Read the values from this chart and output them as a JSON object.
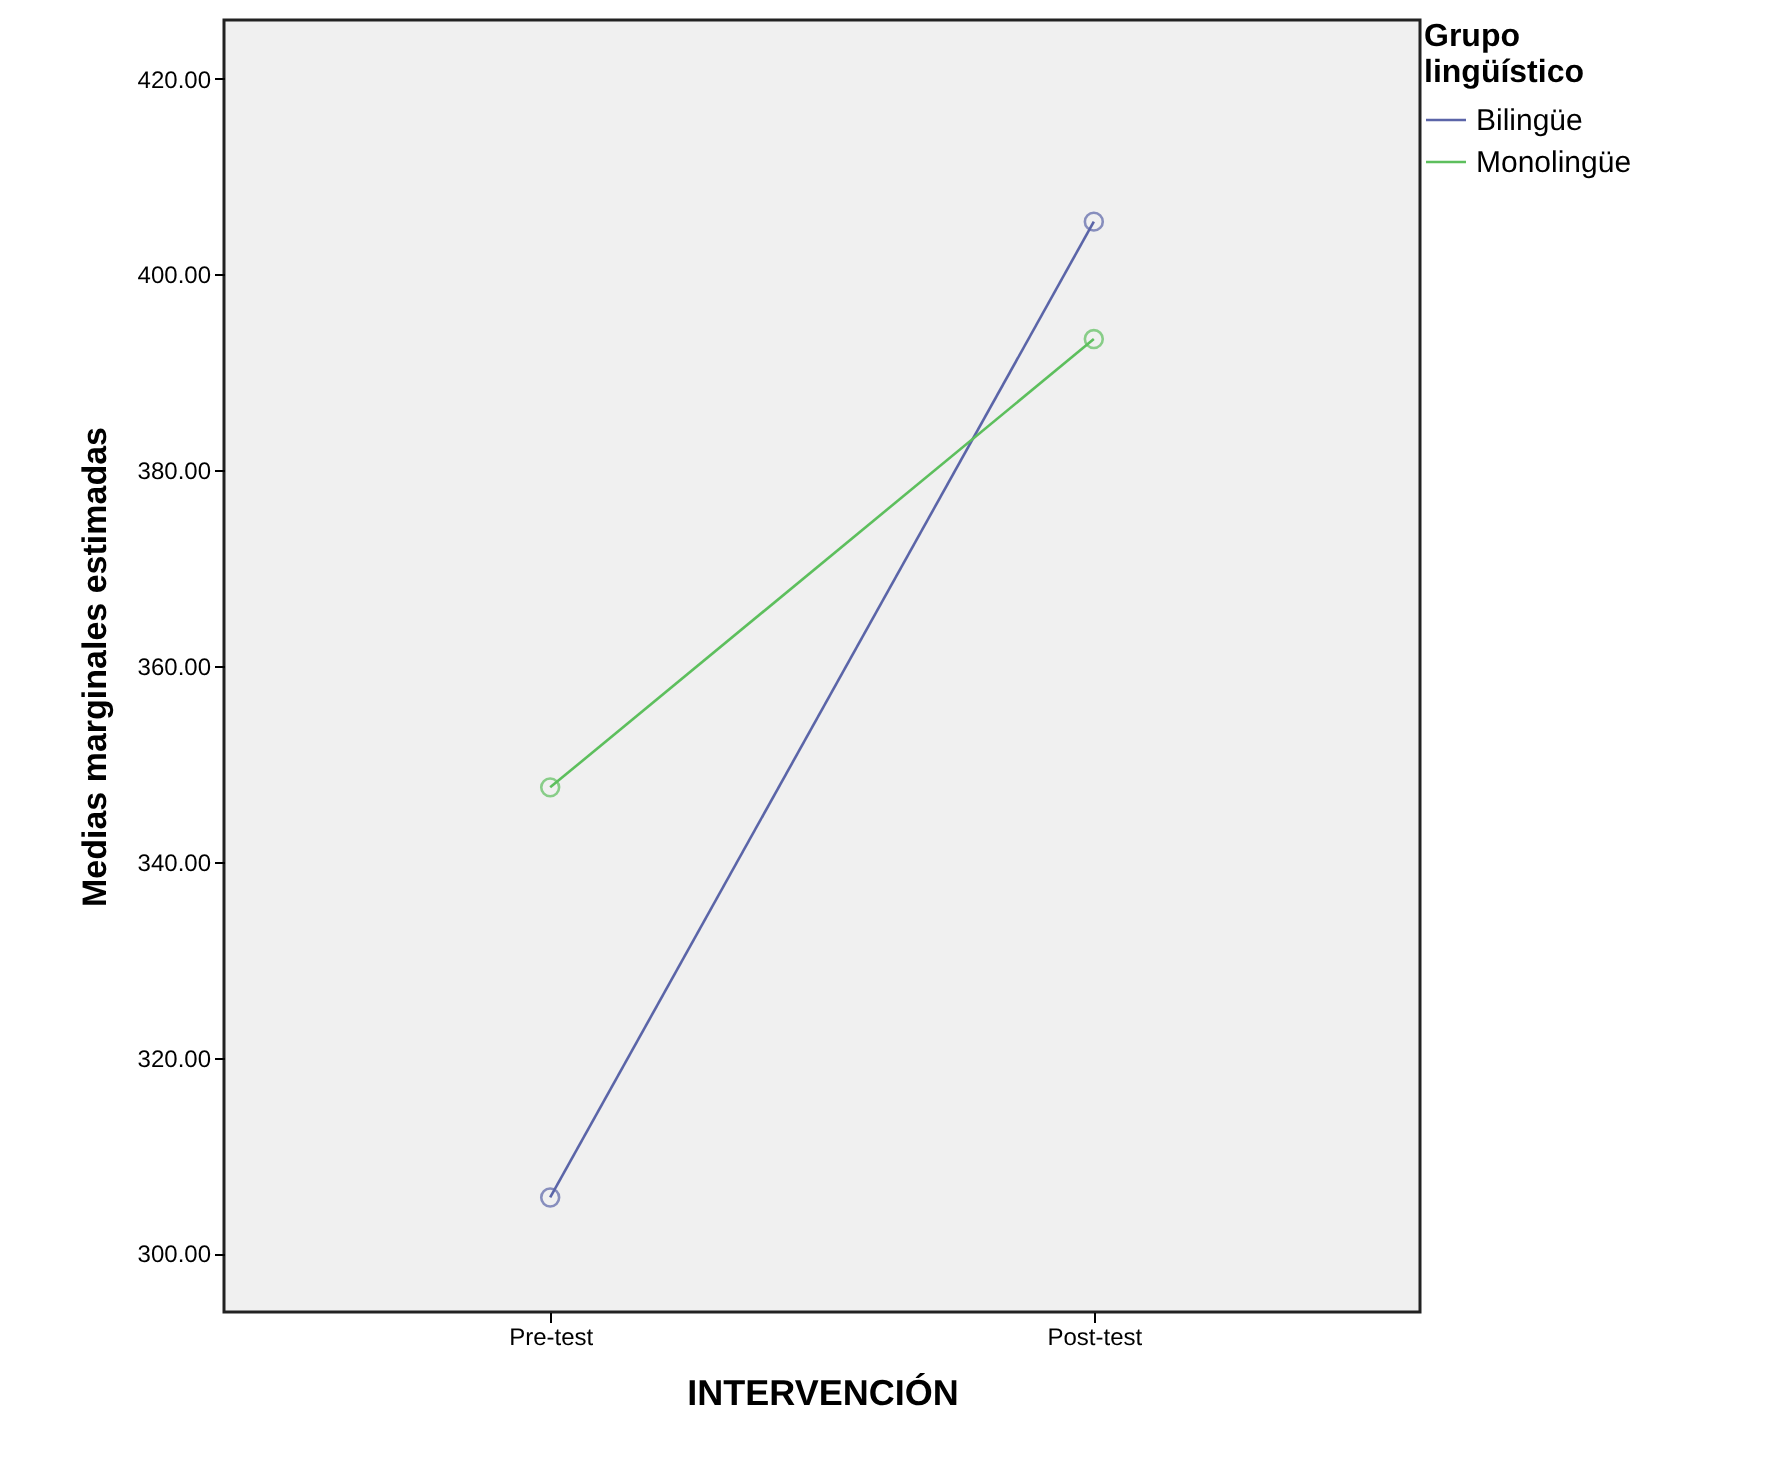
{
  "chart_data": {
    "type": "line",
    "xlabel": "INTERVENCIÓN",
    "ylabel": "Medias marginales estimadas",
    "legend_title": "Grupo lingüístico",
    "categories": [
      "Pre-test",
      "Post-test"
    ],
    "series": [
      {
        "name": "Bilingüe",
        "color": "#5b65a8",
        "values": [
          305.7,
          405.4
        ]
      },
      {
        "name": "Monolingüe",
        "color": "#5dbf5d",
        "values": [
          347.6,
          393.4
        ]
      }
    ],
    "ylim": [
      294,
      426
    ],
    "yticks": [
      {
        "value": 300,
        "label": "300.00"
      },
      {
        "value": 320,
        "label": "320.00"
      },
      {
        "value": 340,
        "label": "340.00"
      },
      {
        "value": 360,
        "label": "360.00"
      },
      {
        "value": 380,
        "label": "380.00"
      },
      {
        "value": 400,
        "label": "400.00"
      },
      {
        "value": 420,
        "label": "420.00"
      }
    ],
    "legend": "top right",
    "marker": "circle",
    "grid": false
  }
}
